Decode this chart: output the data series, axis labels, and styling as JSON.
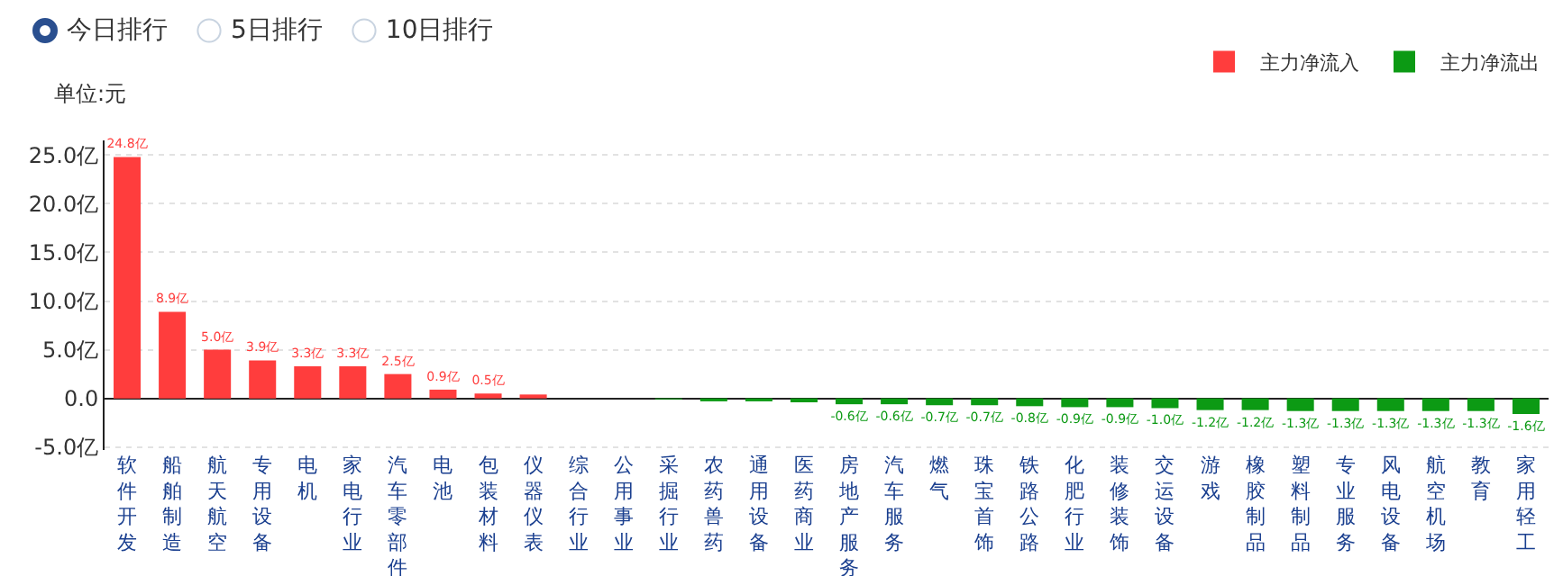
{
  "chart_data": {
    "type": "bar",
    "annotations": [
      "今日排行",
      "5日排行",
      "10日排行"
    ],
    "ylabel": "单位:元",
    "categories": [
      "软件开发",
      "船舶制造",
      "航天航空",
      "专用设备",
      "电机",
      "家电行业",
      "汽车零部件",
      "电池",
      "包装材料",
      "仪器仪表",
      "综合行业",
      "公用事业",
      "采掘行业",
      "农药兽药",
      "通用设备",
      "医药商业",
      "房地产服务",
      "汽车服务",
      "燃气",
      "珠宝首饰",
      "铁路公路",
      "化肥行业",
      "装修装饰",
      "交运设备",
      "游戏",
      "橡胶制品",
      "塑料制品",
      "专业服务",
      "风电设备",
      "航空机场",
      "教育",
      "家用轻工"
    ],
    "series": [
      {
        "name": "主力净流入",
        "color": "#ff3d3d",
        "values": [
          24.8,
          8.9,
          5.0,
          3.9,
          3.3,
          3.3,
          2.5,
          0.9,
          0.5,
          0.4,
          null,
          null,
          null,
          null,
          null,
          null,
          null,
          null,
          null,
          null,
          null,
          null,
          null,
          null,
          null,
          null,
          null,
          null,
          null,
          null,
          null,
          null
        ],
        "value_labels": [
          "24.8亿",
          "8.9亿",
          "5.0亿",
          "3.9亿",
          "3.3亿",
          "3.3亿",
          "2.5亿",
          "0.9亿",
          "0.5亿",
          null,
          null,
          null,
          null,
          null,
          null,
          null,
          null,
          null,
          null,
          null,
          null,
          null,
          null,
          null,
          null,
          null,
          null,
          null,
          null,
          null,
          null,
          null
        ]
      },
      {
        "name": "主力净流出",
        "color": "#0c9a14",
        "values": [
          null,
          null,
          null,
          null,
          null,
          null,
          null,
          null,
          null,
          null,
          null,
          null,
          -0.1,
          -0.3,
          -0.3,
          -0.4,
          -0.6,
          -0.6,
          -0.7,
          -0.7,
          -0.8,
          -0.9,
          -0.9,
          -1.0,
          -1.2,
          -1.2,
          -1.3,
          -1.3,
          -1.3,
          -1.3,
          -1.3,
          -1.6
        ],
        "value_labels": [
          null,
          null,
          null,
          null,
          null,
          null,
          null,
          null,
          null,
          null,
          null,
          null,
          null,
          null,
          null,
          null,
          "-0.6亿",
          "-0.6亿",
          "-0.7亿",
          "-0.7亿",
          "-0.8亿",
          "-0.9亿",
          "-0.9亿",
          "-1.0亿",
          "-1.2亿",
          "-1.2亿",
          "-1.3亿",
          "-1.3亿",
          "-1.3亿",
          "-1.3亿",
          "-1.3亿",
          "-1.6亿"
        ]
      }
    ],
    "ylim": [
      -5.3,
      26.5
    ],
    "yticks": [
      {
        "value": -5,
        "label": "-5.0亿"
      },
      {
        "value": 0,
        "label": "0.0"
      },
      {
        "value": 5,
        "label": "5.0亿"
      },
      {
        "value": 10,
        "label": "10.0亿"
      },
      {
        "value": 15,
        "label": "15.0亿"
      },
      {
        "value": 20,
        "label": "20.0亿"
      },
      {
        "value": 25,
        "label": "25.0亿"
      }
    ],
    "grid": "y",
    "legend": "top right"
  }
}
